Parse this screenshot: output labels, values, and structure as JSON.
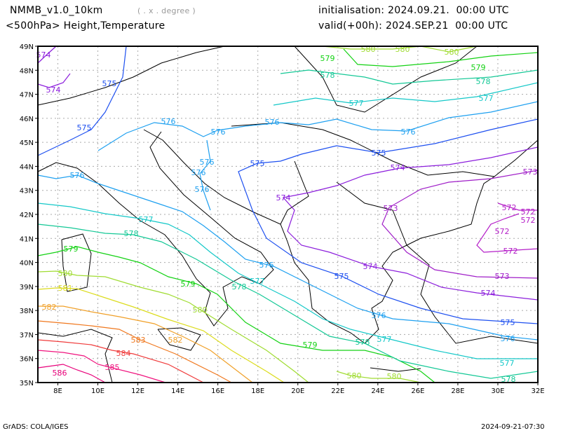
{
  "header": {
    "model": "NMMB_v1.0_10km",
    "units": "( . x . degree )",
    "field": "<500hPa> Height,Temperature",
    "init": "initialisation: 2024.09.21.  00:00 UTC",
    "valid": "valid(+00h): 2024.SEP.21  00:00 UTC"
  },
  "footer": {
    "credit": "GrADS: COLA/IGES",
    "timestamp": "2024-09-21-07:30"
  },
  "axes": {
    "lon_labels": [
      "8E",
      "10E",
      "12E",
      "14E",
      "16E",
      "18E",
      "20E",
      "22E",
      "24E",
      "26E",
      "28E",
      "30E",
      "32E"
    ],
    "lat_labels": [
      "35N",
      "36N",
      "37N",
      "38N",
      "39N",
      "40N",
      "41N",
      "42N",
      "43N",
      "44N",
      "45N",
      "46N",
      "47N",
      "48N",
      "49N"
    ]
  },
  "contours": [
    {
      "level": "586",
      "color": "#e8007a"
    },
    {
      "level": "585",
      "color": "#f0147e"
    },
    {
      "level": "584",
      "color": "#f03c3c"
    },
    {
      "level": "583",
      "color": "#f0781e"
    },
    {
      "level": "582",
      "color": "#f0a028"
    },
    {
      "level": "581",
      "color": "#dcdc1e"
    },
    {
      "level": "580",
      "color": "#a0dc32"
    },
    {
      "level": "579",
      "color": "#14d214"
    },
    {
      "level": "578",
      "color": "#14c896"
    },
    {
      "level": "577",
      "color": "#14c8c8"
    },
    {
      "level": "576",
      "color": "#1ea0f0"
    },
    {
      "level": "575",
      "color": "#1e50f0"
    },
    {
      "level": "574",
      "color": "#8c1edc"
    },
    {
      "level": "573",
      "color": "#a01ec8"
    },
    {
      "level": "572",
      "color": "#b41ec8"
    }
  ]
}
